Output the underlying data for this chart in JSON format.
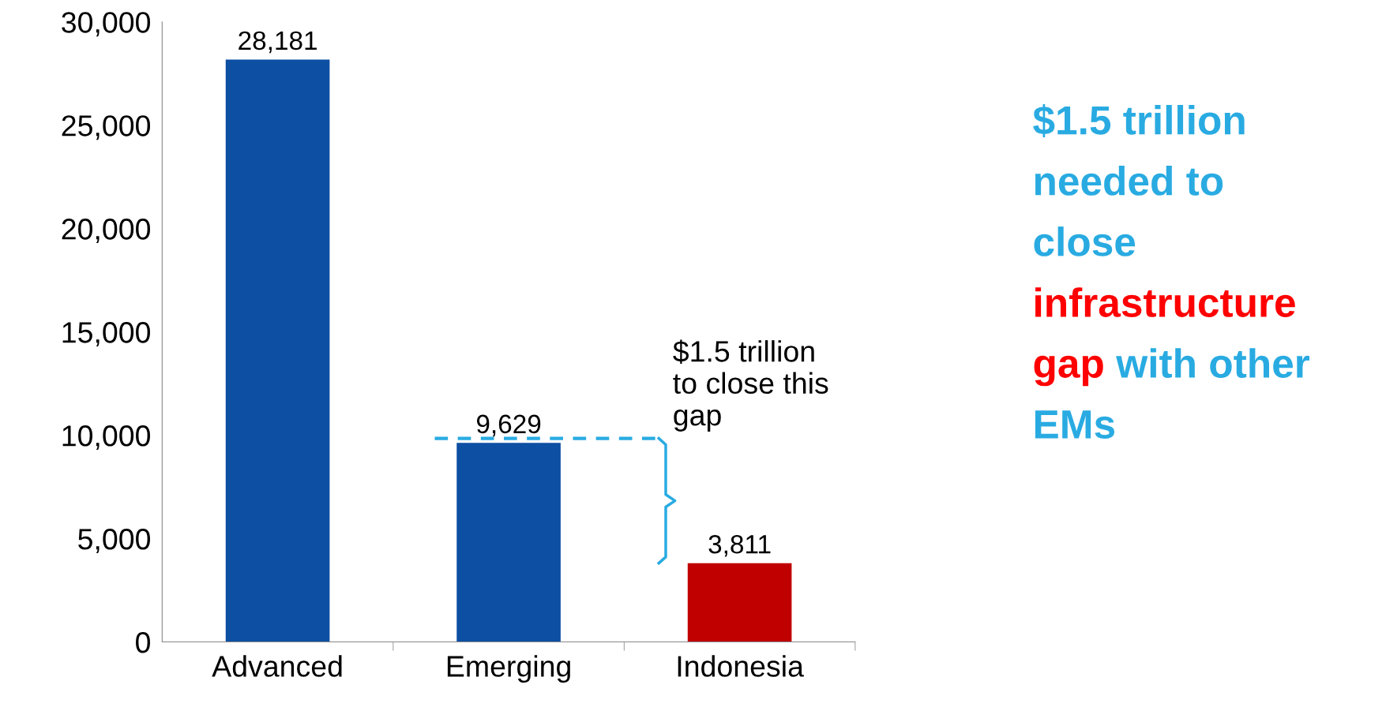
{
  "chart_data": {
    "type": "bar",
    "categories": [
      "Advanced",
      "Emerging",
      "Indonesia"
    ],
    "values": [
      28181,
      9629,
      3811
    ],
    "colors": [
      "#0d4fa3",
      "#0d4fa3",
      "#c00000"
    ],
    "value_labels": [
      "28,181",
      "9,629",
      "3,811"
    ],
    "ylim": [
      0,
      30000
    ],
    "yticks": [
      {
        "value": 0,
        "label": "0"
      },
      {
        "value": 5000,
        "label": "5,000"
      },
      {
        "value": 10000,
        "label": "10,000"
      },
      {
        "value": 15000,
        "label": "15,000"
      },
      {
        "value": 20000,
        "label": "20,000"
      },
      {
        "value": 25000,
        "label": "25,000"
      },
      {
        "value": 30000,
        "label": "30,000"
      }
    ],
    "ref_lines": [
      {
        "axis": "y",
        "value": 9850,
        "color": "#29abe2",
        "line_style": "dashed"
      }
    ],
    "annotations": [
      "$1.5 trillion\nto close this\ngap",
      "$1.5 trillion\nneeded to\nclose\n",
      "infrastructure\ngap",
      " with other\nEMs"
    ],
    "grid": false
  }
}
